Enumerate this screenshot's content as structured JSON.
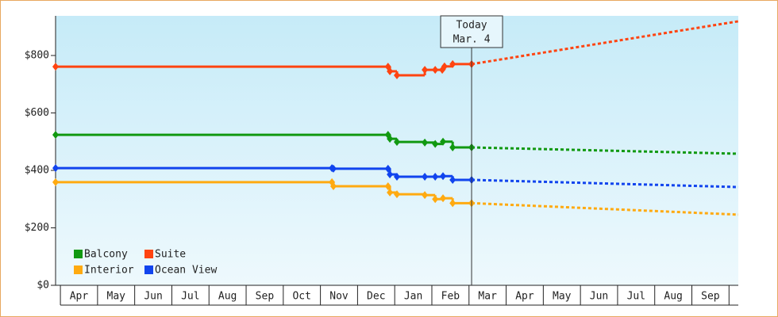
{
  "chart_data": {
    "type": "step-line",
    "xlim": [
      -0.13,
      18.25
    ],
    "ylim": [
      0,
      938
    ],
    "yticks": [
      {
        "value": 0,
        "label": "$0"
      },
      {
        "value": 200,
        "label": "$200"
      },
      {
        "value": 400,
        "label": "$400"
      },
      {
        "value": 600,
        "label": "$600"
      },
      {
        "value": 800,
        "label": "$800"
      }
    ],
    "xticks": [
      {
        "value": 0.5,
        "label": "Apr"
      },
      {
        "value": 1.5,
        "label": "May"
      },
      {
        "value": 2.5,
        "label": "Jun"
      },
      {
        "value": 3.5,
        "label": "Jul"
      },
      {
        "value": 4.5,
        "label": "Aug"
      },
      {
        "value": 5.5,
        "label": "Sep"
      },
      {
        "value": 6.5,
        "label": "Oct"
      },
      {
        "value": 7.5,
        "label": "Nov"
      },
      {
        "value": 8.5,
        "label": "Dec"
      },
      {
        "value": 9.5,
        "label": "Jan"
      },
      {
        "value": 10.5,
        "label": "Feb"
      },
      {
        "value": 11.5,
        "label": "Mar"
      },
      {
        "value": 12.5,
        "label": "Apr"
      },
      {
        "value": 13.5,
        "label": "May"
      },
      {
        "value": 14.5,
        "label": "Jun"
      },
      {
        "value": 15.5,
        "label": "Jul"
      },
      {
        "value": 16.5,
        "label": "Aug"
      },
      {
        "value": 17.5,
        "label": "Sep"
      }
    ],
    "today": {
      "x": 11.07,
      "label": [
        "Today",
        "Mar. 4"
      ]
    },
    "legend": "lower left",
    "series": [
      {
        "name": "Balcony",
        "color": "#119911",
        "x": [
          -0.13,
          8.82,
          8.87,
          9.06,
          9.81,
          10.09,
          10.3,
          10.56,
          11.07
        ],
        "values": [
          524,
          524,
          510,
          499,
          497,
          492,
          500,
          480,
          480
        ],
        "forecast": {
          "x": [
            11.07,
            18.25
          ],
          "values": [
            480,
            458
          ]
        }
      },
      {
        "name": "Suite",
        "color": "#ff4411",
        "x": [
          -0.13,
          8.82,
          8.87,
          9.06,
          9.81,
          10.09,
          10.28,
          10.34,
          10.56,
          11.07
        ],
        "values": [
          761,
          761,
          745,
          731,
          750,
          750,
          750,
          762,
          770,
          770
        ],
        "forecast": {
          "x": [
            11.07,
            18.25
          ],
          "values": [
            770,
            919
          ]
        }
      },
      {
        "name": "Interior",
        "color": "#ffaa11",
        "x": [
          -0.13,
          7.31,
          7.35,
          8.82,
          8.87,
          9.06,
          9.81,
          10.09,
          10.3,
          10.56,
          11.07
        ],
        "values": [
          359,
          359,
          345,
          345,
          323,
          317,
          314,
          300,
          303,
          286,
          286
        ],
        "forecast": {
          "x": [
            11.07,
            18.25
          ],
          "values": [
            286,
            246
          ]
        }
      },
      {
        "name": "Ocean View",
        "color": "#1144ee",
        "x": [
          -0.13,
          7.31,
          7.35,
          8.82,
          8.87,
          9.06,
          9.81,
          10.09,
          10.3,
          10.56,
          11.07
        ],
        "values": [
          408,
          408,
          406,
          406,
          386,
          378,
          378,
          378,
          380,
          367,
          367
        ],
        "forecast": {
          "x": [
            11.07,
            18.25
          ],
          "values": [
            367,
            342
          ]
        }
      }
    ]
  }
}
